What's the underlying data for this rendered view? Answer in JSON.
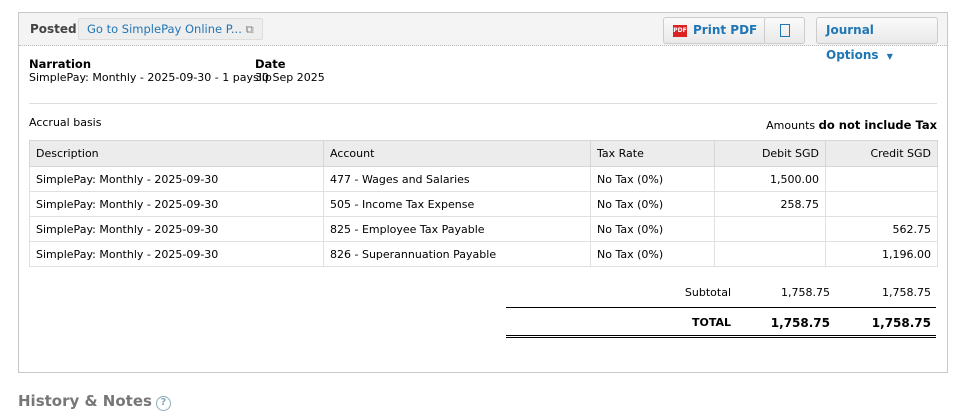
{
  "header": {
    "status": "Posted",
    "goto_label": "Go to SimplePay Online P...",
    "print_pdf": "Print PDF",
    "journal_options": "Journal Options"
  },
  "narration": {
    "label": "Narration",
    "value": "SimplePay: Monthly - 2025-09-30 - 1 payslip"
  },
  "date": {
    "label": "Date",
    "value": "30 Sep 2025"
  },
  "basis": "Accrual basis",
  "amounts": {
    "label": "Amounts",
    "value": "do not include Tax"
  },
  "table": {
    "headers": [
      "Description",
      "Account",
      "Tax Rate",
      "Debit SGD",
      "Credit SGD"
    ],
    "rows": [
      [
        "SimplePay: Monthly - 2025-09-30",
        "477 - Wages and Salaries",
        "No Tax (0%)",
        "1,500.00",
        ""
      ],
      [
        "SimplePay: Monthly - 2025-09-30",
        "505 - Income Tax Expense",
        "No Tax (0%)",
        "258.75",
        ""
      ],
      [
        "SimplePay: Monthly - 2025-09-30",
        "825 - Employee Tax Payable",
        "No Tax (0%)",
        "",
        "562.75"
      ],
      [
        "SimplePay: Monthly - 2025-09-30",
        "826 - Superannuation Payable",
        "No Tax (0%)",
        "",
        "1,196.00"
      ]
    ]
  },
  "totals": {
    "subtotal_label": "Subtotal",
    "subtotal_debit": "1,758.75",
    "subtotal_credit": "1,758.75",
    "total_label": "TOTAL",
    "total_debit": "1,758.75",
    "total_credit": "1,758.75"
  },
  "history": {
    "title": "History & Notes"
  }
}
